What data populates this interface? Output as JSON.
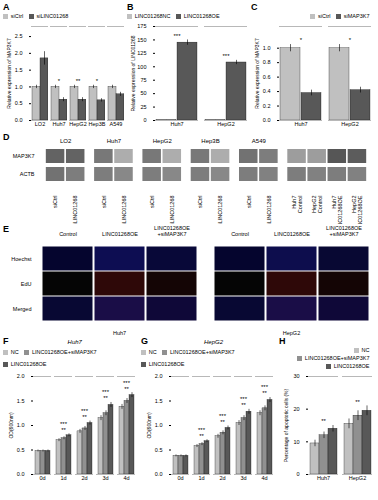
{
  "chart_data": [
    {
      "type": "bar",
      "title": "A",
      "ylabel": "Relative expression of MAP3K7",
      "categories": [
        "LO2",
        "Huh7",
        "HepG2",
        "Hep3B",
        "A549"
      ],
      "series": [
        {
          "name": "siCtrl",
          "color": "#c0c0c0",
          "values": [
            1.0,
            1.0,
            1.0,
            1.0,
            1.0
          ],
          "errors": [
            0.05,
            0.05,
            0.05,
            0.05,
            0.05
          ]
        },
        {
          "name": "siLINC01268",
          "color": "#585858",
          "values": [
            1.85,
            0.62,
            0.62,
            0.6,
            0.78
          ],
          "errors": [
            0.2,
            0.06,
            0.06,
            0.05,
            0.06
          ]
        }
      ],
      "ylim": [
        0.0,
        2.8
      ],
      "yticks": [
        {
          "value": 0.0,
          "label": "0.0"
        },
        0.5,
        {
          "value": 1.0,
          "label": "1.0"
        },
        1.5,
        {
          "value": 2.0,
          "label": "2.0"
        },
        2.5
      ],
      "legend": "upper left",
      "annotations": [
        {
          "category": "Huh7",
          "text": "*"
        },
        {
          "category": "HepG2",
          "text": "**"
        },
        {
          "category": "Hep3B",
          "text": "*"
        }
      ]
    },
    {
      "type": "bar",
      "title": "B",
      "ylabel": "Relative expression of LINC01268",
      "categories": [
        "Huh7",
        "HepG2"
      ],
      "series": [
        {
          "name": "LINC01268NC",
          "color": "#c0c0c0",
          "values": [
            1.0,
            1.0
          ],
          "errors": [
            0.1,
            0.1
          ]
        },
        {
          "name": "LINC01268OE",
          "color": "#585858",
          "values": [
            145.0,
            108.0
          ],
          "errors": [
            5.0,
            4.0
          ]
        }
      ],
      "ylim": [
        0,
        175
      ],
      "yticks": [
        0,
        25,
        50,
        75,
        100,
        125,
        150,
        175
      ],
      "legend": "upper left",
      "annotations": [
        {
          "category": "Huh7",
          "text": "***"
        },
        {
          "category": "HepG2",
          "text": "***"
        }
      ]
    },
    {
      "type": "bar",
      "title": "C",
      "ylabel": "Relative expression of MAP3K7",
      "categories": [
        "Huh7",
        "HepG2"
      ],
      "series": [
        {
          "name": "siCtrl",
          "color": "#c0c0c0",
          "values": [
            1.0,
            1.0
          ],
          "errors": [
            0.05,
            0.05
          ]
        },
        {
          "name": "siMAP3K7",
          "color": "#585858",
          "values": [
            0.38,
            0.42
          ],
          "errors": [
            0.04,
            0.04
          ]
        }
      ],
      "ylim": [
        0.0,
        1.3
      ],
      "yticks": [
        {
          "value": 0.0,
          "label": "0.0"
        },
        0.2,
        0.4,
        0.6,
        0.8,
        {
          "value": 1.0,
          "label": "1.0"
        }
      ],
      "legend": "upper right",
      "annotations": [
        {
          "category": "Huh7",
          "text": "*"
        },
        {
          "category": "HepG2",
          "text": "*"
        }
      ]
    },
    {
      "type": "blot",
      "title": "D",
      "rows": [
        "MAP3K7",
        "ACTB"
      ],
      "categories": [
        "siCtrl",
        "siLINC01268",
        "siCtrl",
        "siLINC01268",
        "siCtrl",
        "siLINC01268",
        "siCtrl",
        "siLINC01268",
        "siCtrl",
        "siLINC01268",
        "Huh7\nControl",
        "HepG2\nControl",
        "Huh7\nLINC01268OE",
        "HepG2\nLINC01268OE"
      ],
      "groups": [
        "LO2",
        "LO2",
        "Huh7",
        "Huh7",
        "HepG2",
        "HepG2",
        "Hep3B",
        "Hep3B",
        "A549",
        "A549",
        null,
        null,
        null,
        null
      ],
      "cells": [
        [
          0.72,
          0.72,
          0.62,
          0.38,
          0.62,
          0.38,
          0.62,
          0.38,
          0.65,
          0.6,
          0.45,
          0.45,
          0.78,
          0.75
        ],
        [
          0.65,
          0.6,
          0.6,
          0.55,
          0.6,
          0.55,
          0.6,
          0.55,
          0.6,
          0.58,
          0.6,
          0.58,
          0.6,
          0.58
        ]
      ]
    },
    {
      "type": "image",
      "title": "E",
      "groups": [
        "Huh7",
        "HepG2"
      ],
      "rows": [
        "Hoechst",
        "EdU",
        "Merged"
      ],
      "columns": [
        "Control",
        "LINC01268OE",
        "LINC01268OE\n+siMAP3K7"
      ],
      "colors": [
        [
          [
            "rgb(2%, 2%, 18%)",
            "rgb(5%, 5%, 32%)",
            "rgb(3%, 3%, 22%)"
          ],
          [
            "rgb(2%, 2%, 2%)",
            "rgb(18%, 3%, 3%)",
            "rgb(8%, 2%, 2%)"
          ],
          [
            "rgb(3%, 3%, 20%)",
            "rgb(10%, 5%, 28%)",
            "rgb(6%, 3%, 22%)"
          ]
        ],
        [
          [
            "rgb(2%, 2%, 18%)",
            "rgb(5%, 5%, 30%)",
            "rgb(3%, 3%, 20%)"
          ],
          [
            "rgb(2%, 2%, 2%)",
            "rgb(18%, 3%, 3%)",
            "rgb(8%, 2%, 2%)"
          ],
          [
            "rgb(3%, 3%, 20%)",
            "rgb(10%, 5%, 28%)",
            "rgb(6%, 3%, 22%)"
          ]
        ]
      ]
    },
    {
      "type": "bar",
      "title": "F",
      "subtitle": "Huh7",
      "ylabel": "OD(600nm)",
      "categories": [
        "0d",
        "1d",
        "2d",
        "3d",
        "4d"
      ],
      "series": [
        {
          "name": "NC",
          "color": "#c0c0c0",
          "values": [
            0.48,
            0.7,
            0.88,
            1.15,
            1.38
          ],
          "errors": [
            0.02,
            0.03,
            0.04,
            0.05,
            0.05
          ]
        },
        {
          "name": "LINC01268OE+siMAP3K7",
          "color": "#909090",
          "values": [
            0.48,
            0.74,
            0.94,
            1.25,
            1.5
          ],
          "errors": [
            0.02,
            0.03,
            0.04,
            0.05,
            0.05
          ]
        },
        {
          "name": "LINC01268OE",
          "color": "#585858",
          "values": [
            0.48,
            0.8,
            1.05,
            1.42,
            1.62
          ],
          "errors": [
            0.02,
            0.03,
            0.04,
            0.05,
            0.05
          ]
        }
      ],
      "ylim": [
        0.0,
        2.0
      ],
      "yticks": [
        {
          "value": 0.0,
          "label": "0.0"
        },
        0.5,
        {
          "value": 1.0,
          "label": "1.0"
        },
        1.5,
        {
          "value": 2.0,
          "label": "2.0"
        }
      ],
      "legend": "upper left",
      "annotations": [
        {
          "category": "1d",
          "text": "**"
        },
        {
          "category": "1d",
          "text": "***"
        },
        {
          "category": "2d",
          "text": "**"
        },
        {
          "category": "2d",
          "text": "***"
        },
        {
          "category": "3d",
          "text": "**"
        },
        {
          "category": "3d",
          "text": "***"
        },
        {
          "category": "4d",
          "text": "**"
        },
        {
          "category": "4d",
          "text": "***"
        }
      ]
    },
    {
      "type": "bar",
      "title": "G",
      "subtitle": "HepG2",
      "ylabel": "OD(600nm)",
      "categories": [
        "0d",
        "1d",
        "2d",
        "3d",
        "4d"
      ],
      "series": [
        {
          "name": "NC",
          "color": "#c0c0c0",
          "values": [
            0.38,
            0.58,
            0.78,
            1.05,
            1.25
          ],
          "errors": [
            0.02,
            0.03,
            0.04,
            0.05,
            0.05
          ]
        },
        {
          "name": "LINC01268OE+siMAP3K7",
          "color": "#909090",
          "values": [
            0.38,
            0.62,
            0.85,
            1.15,
            1.35
          ],
          "errors": [
            0.02,
            0.03,
            0.04,
            0.05,
            0.05
          ]
        },
        {
          "name": "LINC01268OE",
          "color": "#585858",
          "values": [
            0.38,
            0.68,
            0.95,
            1.28,
            1.52
          ],
          "errors": [
            0.02,
            0.03,
            0.04,
            0.05,
            0.05
          ]
        }
      ],
      "ylim": [
        0.0,
        2.0
      ],
      "yticks": [
        {
          "value": 0.0,
          "label": "0.0"
        },
        0.5,
        {
          "value": 1.0,
          "label": "1.0"
        },
        1.5,
        {
          "value": 2.0,
          "label": "2.0"
        }
      ],
      "legend": "upper left",
      "annotations": [
        {
          "category": "1d",
          "text": "**"
        },
        {
          "category": "1d",
          "text": "***"
        },
        {
          "category": "2d",
          "text": "**"
        },
        {
          "category": "2d",
          "text": "***"
        },
        {
          "category": "3d",
          "text": "**"
        },
        {
          "category": "3d",
          "text": "***"
        },
        {
          "category": "4d",
          "text": "**"
        },
        {
          "category": "4d",
          "text": "***"
        }
      ]
    },
    {
      "type": "bar",
      "title": "H",
      "ylabel": "Percentage of apoptotic cells (%)",
      "categories": [
        "Huh7",
        "HepG2"
      ],
      "series": [
        {
          "name": "NC",
          "color": "#c0c0c0",
          "values": [
            9.5,
            15.5
          ],
          "errors": [
            1.0,
            1.5
          ]
        },
        {
          "name": "LINC01268OE+siMAP3K7",
          "color": "#909090",
          "values": [
            12.0,
            18.0
          ],
          "errors": [
            1.0,
            1.5
          ]
        },
        {
          "name": "LINC01268OE",
          "color": "#585858",
          "values": [
            14.0,
            19.5
          ],
          "errors": [
            1.0,
            1.5
          ]
        }
      ],
      "ylim": [
        0,
        30
      ],
      "yticks": [
        0,
        10,
        20,
        30
      ],
      "legend": "upper right",
      "annotations": [
        {
          "category": "Huh7",
          "text": "**"
        },
        {
          "category": "HepG2",
          "text": "**"
        }
      ]
    }
  ]
}
